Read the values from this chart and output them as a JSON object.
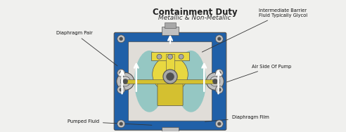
{
  "title": "Containment Duty",
  "subtitle": "Metallic & Non-Metallic",
  "bg_color": "#f0f0ee",
  "labels": {
    "diaphragm_pair": "Diaphragm Pair",
    "intermediate_barrier": "Intermediate Barrier\nFluid Typically Glycol",
    "air_side": "Air Side Of Pump",
    "pumped_fluid": "Pumped Fluid",
    "diaphragm_film": "Diaphragm Film"
  },
  "colors": {
    "blue_outer": "#2060a8",
    "blue_mid": "#3070b8",
    "white_inner": "#e8e8e8",
    "teal_inner": "#88c4c0",
    "yellow_bright": "#e8d840",
    "yellow_mid": "#d4c030",
    "yellow_dark": "#c8a800",
    "gray_metal": "#a8a8a8",
    "gray_light": "#d0d0d0",
    "dark_gray": "#505050",
    "white": "#ffffff",
    "black": "#101010",
    "silver": "#c0c0c0",
    "off_white": "#e0ddd8",
    "blue_arrow": "#4488cc"
  },
  "figsize": [
    4.92,
    1.88
  ],
  "dpi": 100
}
